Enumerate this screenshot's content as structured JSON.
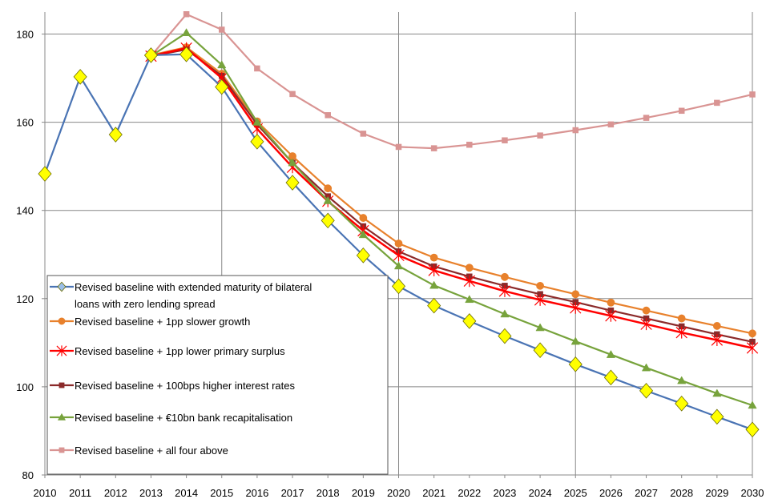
{
  "chart_data": {
    "type": "line",
    "title": "",
    "xlabel": "",
    "ylabel": "",
    "x": [
      2010,
      2011,
      2012,
      2013,
      2014,
      2015,
      2016,
      2017,
      2018,
      2019,
      2020,
      2021,
      2022,
      2023,
      2024,
      2025,
      2026,
      2027,
      2028,
      2029,
      2030
    ],
    "xlim": [
      2010,
      2030
    ],
    "ylim": [
      80,
      185
    ],
    "yticks": [
      80,
      100,
      120,
      140,
      160,
      180
    ],
    "grid": true,
    "legend_position": "bottom-left",
    "series": [
      {
        "name": "Revised baseline with extended maturity of bilateral loans with zero lending spread",
        "legend_lines": [
          "Revised baseline with extended maturity of bilateral",
          "loans with zero lending spread"
        ],
        "color": "#4a74b4",
        "marker": "diamond",
        "marker_fill": "#ffff00",
        "x": [
          2010,
          2011,
          2012,
          2013,
          2014,
          2015,
          2016,
          2017,
          2018,
          2019,
          2020,
          2021,
          2022,
          2023,
          2024,
          2025,
          2026,
          2027,
          2028,
          2029,
          2030
        ],
        "values": [
          148.3,
          170.3,
          157.2,
          175.2,
          175.4,
          168.0,
          155.6,
          146.3,
          137.7,
          129.8,
          122.8,
          118.4,
          114.9,
          111.5,
          108.3,
          105.1,
          102.1,
          99.1,
          96.2,
          93.2,
          90.3
        ]
      },
      {
        "name": "Revised baseline + 1pp slower growth",
        "legend_lines": [
          "Revised baseline + 1pp slower growth"
        ],
        "color": "#e8812c",
        "marker": "circle",
        "marker_fill": "#e8812c",
        "x": [
          2013,
          2014,
          2015,
          2016,
          2017,
          2018,
          2019,
          2020,
          2021,
          2022,
          2023,
          2024,
          2025,
          2026,
          2027,
          2028,
          2029,
          2030
        ],
        "values": [
          175.2,
          177.0,
          171.0,
          160.2,
          152.3,
          145.0,
          138.3,
          132.5,
          129.3,
          127.0,
          124.9,
          122.9,
          121.0,
          119.1,
          117.3,
          115.5,
          113.8,
          112.1
        ]
      },
      {
        "name": "Revised baseline + 1pp lower primary surplus",
        "legend_lines": [
          "Revised baseline + 1pp lower primary surplus"
        ],
        "color": "#ff0000",
        "marker": "star",
        "marker_fill": "#ff0000",
        "x": [
          2013,
          2014,
          2015,
          2016,
          2017,
          2018,
          2019,
          2020,
          2021,
          2022,
          2023,
          2024,
          2025,
          2026,
          2027,
          2028,
          2029,
          2030
        ],
        "values": [
          175.0,
          176.8,
          170.0,
          158.5,
          149.8,
          142.1,
          135.4,
          129.8,
          126.4,
          124.0,
          121.7,
          119.7,
          117.9,
          116.1,
          114.2,
          112.3,
          110.6,
          108.8
        ]
      },
      {
        "name": "Revised baseline + 100bps higher interest rates",
        "legend_lines": [
          "Revised baseline + 100bps higher interest rates"
        ],
        "color": "#8b2a2a",
        "marker": "square",
        "marker_fill": "#8b2a2a",
        "x": [
          2013,
          2014,
          2015,
          2016,
          2017,
          2018,
          2019,
          2020,
          2021,
          2022,
          2023,
          2024,
          2025,
          2026,
          2027,
          2028,
          2029,
          2030
        ],
        "values": [
          175.0,
          176.5,
          170.5,
          159.5,
          150.8,
          143.2,
          136.4,
          130.7,
          127.3,
          125.0,
          122.9,
          121.0,
          119.2,
          117.3,
          115.5,
          113.7,
          111.9,
          110.2
        ]
      },
      {
        "name": "Revised baseline + €10bn bank recapitalisation",
        "legend_lines": [
          "Revised baseline + €10bn bank recapitalisation"
        ],
        "color": "#77a33c",
        "marker": "triangle",
        "marker_fill": "#77a33c",
        "x": [
          2013,
          2014,
          2015,
          2016,
          2017,
          2018,
          2019,
          2020,
          2021,
          2022,
          2023,
          2024,
          2025,
          2026,
          2027,
          2028,
          2029,
          2030
        ],
        "values": [
          175.0,
          180.3,
          173.0,
          160.0,
          150.8,
          142.2,
          134.5,
          127.4,
          123.0,
          119.8,
          116.5,
          113.4,
          110.3,
          107.3,
          104.3,
          101.4,
          98.5,
          95.8
        ]
      },
      {
        "name": "Revised baseline + all four above",
        "legend_lines": [
          "Revised baseline + all four above"
        ],
        "color": "#d99493",
        "marker": "square",
        "marker_fill": "#d99493",
        "x": [
          2013,
          2014,
          2015,
          2016,
          2017,
          2018,
          2019,
          2020,
          2021,
          2022,
          2023,
          2024,
          2025,
          2026,
          2027,
          2028,
          2029,
          2030
        ],
        "values": [
          175.0,
          184.5,
          181.0,
          172.2,
          166.4,
          161.6,
          157.4,
          154.4,
          154.1,
          154.9,
          155.9,
          157.0,
          158.2,
          159.5,
          161.0,
          162.6,
          164.4,
          166.3
        ]
      }
    ]
  }
}
